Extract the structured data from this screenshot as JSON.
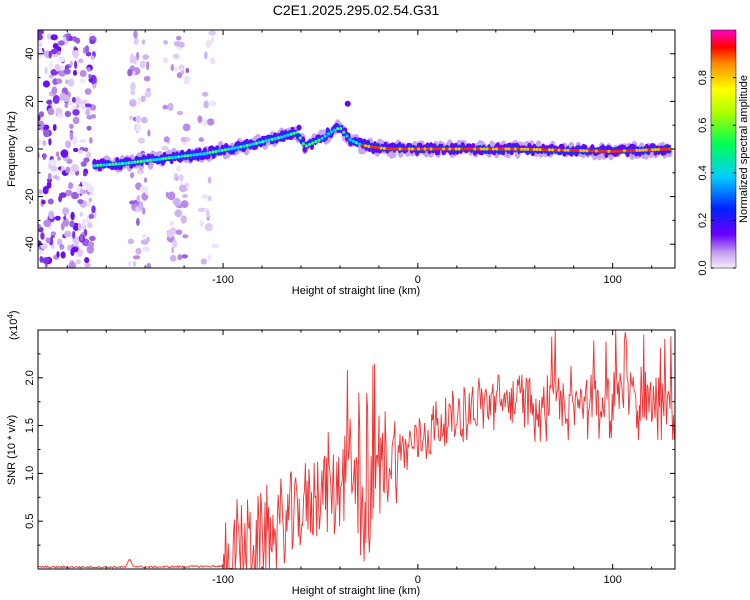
{
  "title": "C2E1.2025.295.02.54.G31",
  "chart_data": [
    {
      "type": "heatmap",
      "name": "spectrogram",
      "xlabel": "Height of straight line (km)",
      "ylabel": "Frequency (Hz)",
      "xlim": [
        -195,
        132
      ],
      "ylim": [
        -50,
        50
      ],
      "x_tick_values": [
        -100,
        0,
        100
      ],
      "x_tick_labels": [
        "-100",
        "0",
        "100"
      ],
      "y_tick_values": [
        -40,
        -20,
        0,
        20,
        40
      ],
      "y_tick_labels": [
        "-40",
        "-20",
        "0",
        "20",
        "40"
      ],
      "ridge": {
        "x": [
          -166,
          -150,
          -130,
          -110,
          -90,
          -80,
          -70,
          -62,
          -58,
          -50,
          -45,
          -40,
          -35,
          -30,
          -25,
          -15,
          0,
          50,
          100,
          130
        ],
        "y": [
          -7,
          -6,
          -4,
          -2,
          1,
          3,
          5,
          7,
          1,
          4,
          7,
          9,
          4,
          2,
          1,
          0,
          0,
          0,
          -1,
          0
        ]
      },
      "colorbar": {
        "label": "Normalized spectral amplitude",
        "range": [
          0.0,
          1.0
        ],
        "tick_values": [
          0.0,
          0.2,
          0.4,
          0.6,
          0.8
        ],
        "tick_labels": [
          "0.0",
          "0.2",
          "0.4",
          "0.6",
          "0.8"
        ]
      }
    },
    {
      "type": "line",
      "name": "snr",
      "series": [
        {
          "name": "SNR",
          "color": "#ee3333"
        }
      ],
      "xlabel": "Height of straight line (km)",
      "ylabel": "SNR (10 * v/v)",
      "scale_label": "(x10",
      "scale_exponent": "4",
      "scale_suffix": ")",
      "xlim": [
        -195,
        132
      ],
      "ylim": [
        0,
        2.5
      ],
      "x_tick_values": [
        -100,
        0,
        100
      ],
      "x_tick_labels": [
        "-100",
        "0",
        "100"
      ],
      "y_tick_values": [
        0.5,
        1.0,
        1.5,
        2.0
      ],
      "y_tick_labels": [
        "0.5",
        "1.0",
        "1.5",
        "2.0"
      ],
      "envelope": {
        "x": [
          -195,
          -150,
          -148,
          -146,
          -140,
          -100,
          -95,
          -90,
          -80,
          -70,
          -60,
          -50,
          -40,
          -35,
          -30,
          -25,
          -20,
          -10,
          0,
          10,
          20,
          30,
          40,
          60,
          80,
          100,
          110,
          120,
          132
        ],
        "y": [
          0.02,
          0.02,
          0.1,
          0.03,
          0.02,
          0.03,
          0.15,
          0.25,
          0.3,
          0.45,
          0.6,
          0.9,
          0.8,
          1.2,
          0.5,
          0.7,
          1.1,
          1.2,
          1.35,
          1.5,
          1.6,
          1.7,
          1.75,
          1.78,
          1.8,
          1.82,
          1.8,
          1.8,
          1.8
        ]
      }
    }
  ]
}
